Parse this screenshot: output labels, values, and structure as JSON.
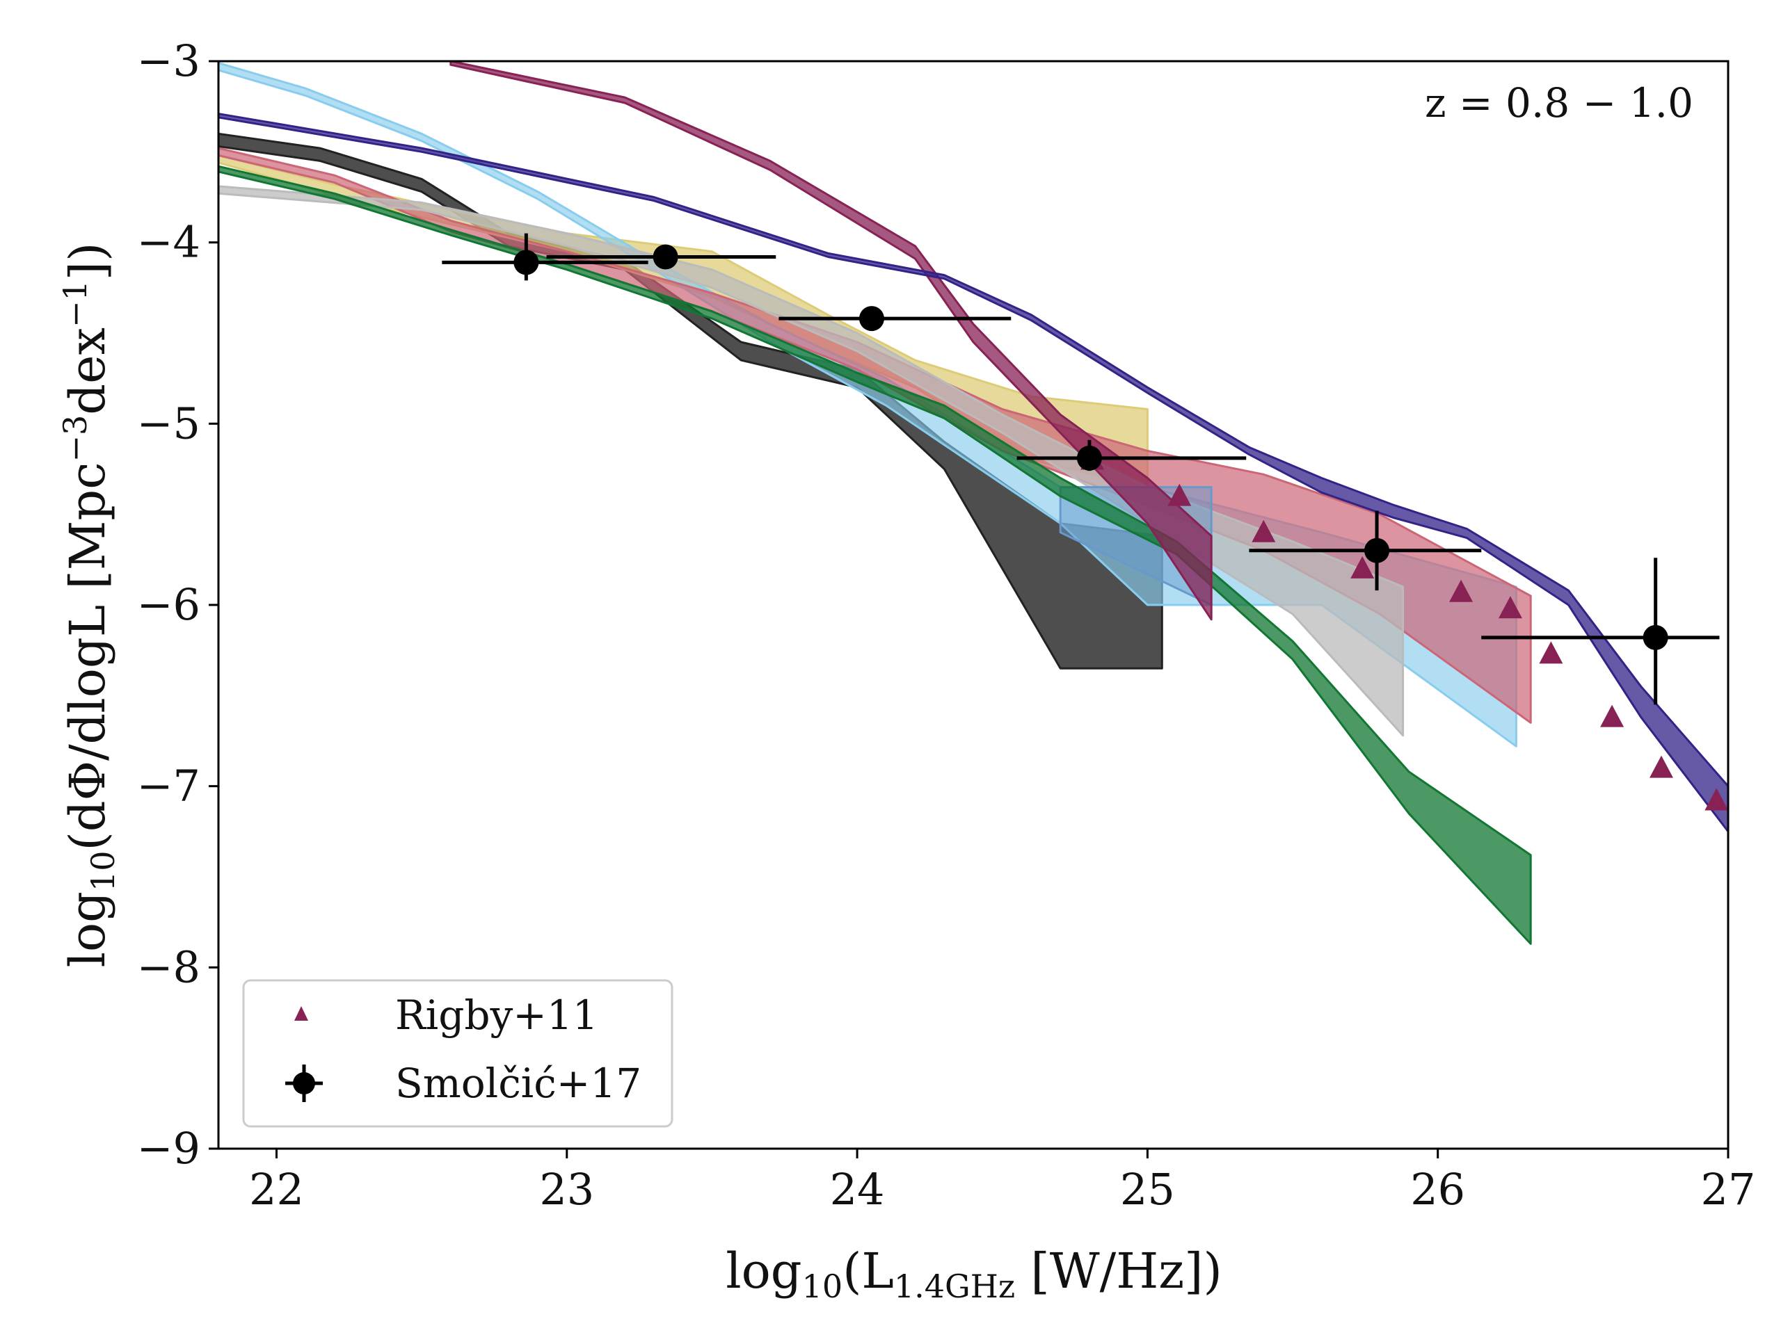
{
  "chart_data": {
    "type": "line",
    "title": "",
    "xlabel_parts": {
      "pre": "log",
      "sub": "10",
      "mid": "(L",
      "sub2": "1.4GHz",
      "post": " [W/Hz])"
    },
    "ylabel_parts": {
      "pre": "log",
      "sub": "10",
      "mid": "(dΦ/dlogL [Mpc",
      "sup": "−3",
      "mid2": "dex",
      "sup2": "−1",
      "post": "])"
    },
    "annotation": "z = 0.8 − 1.0",
    "xlim": [
      21.8,
      27
    ],
    "ylim": [
      -9,
      -3
    ],
    "xticks": [
      22,
      23,
      24,
      25,
      26,
      27
    ],
    "xtick_labels": [
      "22",
      "23",
      "24",
      "25",
      "26",
      "27"
    ],
    "yticks": [
      -9,
      -8,
      -7,
      -6,
      -5,
      -4,
      -3
    ],
    "ytick_labels": [
      "−9",
      "−8",
      "−7",
      "−6",
      "−5",
      "−4",
      "−3"
    ],
    "legend": {
      "position": "lower-left",
      "entries": [
        {
          "label": "Rigby+11",
          "marker": "triangle",
          "color": "#882255"
        },
        {
          "label": "Smolčić+17",
          "marker": "errorbar-circle",
          "color": "#000000"
        }
      ]
    },
    "bands": [
      {
        "name": "black-band",
        "color": "#222222",
        "opacity": 0.8,
        "x": [
          21.8,
          22.15,
          22.5,
          22.8,
          23.2,
          23.6,
          24.0,
          24.3,
          24.7,
          25.05
        ],
        "upper": [
          -3.4,
          -3.48,
          -3.65,
          -3.95,
          -4.1,
          -4.55,
          -4.7,
          -5.1,
          -5.55,
          -5.62
        ],
        "lower": [
          -3.47,
          -3.55,
          -3.72,
          -4.02,
          -4.15,
          -4.65,
          -4.8,
          -5.25,
          -6.35,
          -6.35
        ]
      },
      {
        "name": "gold-band",
        "color": "#ddcc77",
        "opacity": 0.75,
        "x": [
          21.8,
          22.2,
          22.6,
          23.0,
          23.5,
          23.9,
          24.2,
          24.6,
          25.0
        ],
        "upper": [
          -3.52,
          -3.68,
          -3.82,
          -3.95,
          -4.05,
          -4.4,
          -4.65,
          -4.85,
          -4.92
        ],
        "lower": [
          -3.56,
          -3.74,
          -3.9,
          -4.05,
          -4.3,
          -4.6,
          -4.8,
          -5.2,
          -5.35
        ]
      },
      {
        "name": "skyblue-band",
        "color": "#88ccee",
        "opacity": 0.65,
        "x": [
          21.8,
          22.1,
          22.5,
          22.9,
          23.3,
          23.7,
          24.1,
          24.7,
          25.0,
          25.6,
          26.27
        ],
        "upper": [
          -3.01,
          -3.15,
          -3.4,
          -3.72,
          -4.1,
          -4.45,
          -4.75,
          -5.35,
          -5.35,
          -5.6,
          -5.9
        ],
        "lower": [
          -3.05,
          -3.19,
          -3.44,
          -3.76,
          -4.15,
          -4.55,
          -4.9,
          -5.55,
          -6.0,
          -6.0,
          -6.78
        ]
      },
      {
        "name": "rose-band",
        "color": "#cc6677",
        "opacity": 0.7,
        "x": [
          21.8,
          22.2,
          22.6,
          23.0,
          23.5,
          24.0,
          24.5,
          25.0,
          25.4,
          25.8,
          26.32
        ],
        "upper": [
          -3.48,
          -3.63,
          -3.88,
          -4.05,
          -4.28,
          -4.55,
          -4.92,
          -5.15,
          -5.28,
          -5.5,
          -5.95
        ],
        "lower": [
          -3.52,
          -3.67,
          -3.94,
          -4.12,
          -4.38,
          -4.7,
          -5.15,
          -5.45,
          -5.7,
          -6.05,
          -6.65
        ]
      },
      {
        "name": "grey-band",
        "color": "#bbbbbb",
        "opacity": 0.75,
        "x": [
          21.8,
          22.5,
          23.0,
          23.5,
          24.0,
          24.5,
          25.0,
          25.5,
          25.88
        ],
        "upper": [
          -3.69,
          -3.78,
          -3.95,
          -4.15,
          -4.5,
          -4.95,
          -5.35,
          -5.65,
          -5.9
        ],
        "lower": [
          -3.73,
          -3.82,
          -4.02,
          -4.25,
          -4.6,
          -5.05,
          -5.55,
          -6.05,
          -6.72
        ]
      },
      {
        "name": "steelblue-band",
        "color": "#6699cc",
        "opacity": 0.5,
        "x": [
          24.7,
          25.22
        ],
        "upper": [
          -5.35,
          -5.35
        ],
        "lower": [
          -5.6,
          -6.0
        ]
      },
      {
        "name": "green-band",
        "color": "#117733",
        "opacity": 0.75,
        "x": [
          21.8,
          22.2,
          22.6,
          23.0,
          23.5,
          24.0,
          24.3,
          24.7,
          25.1,
          25.5,
          25.9,
          26.32
        ],
        "upper": [
          -3.58,
          -3.73,
          -3.93,
          -4.12,
          -4.38,
          -4.72,
          -4.9,
          -5.3,
          -5.65,
          -6.2,
          -6.92,
          -7.38
        ],
        "lower": [
          -3.61,
          -3.76,
          -3.96,
          -4.15,
          -4.42,
          -4.77,
          -4.97,
          -5.4,
          -5.72,
          -6.3,
          -7.15,
          -7.87
        ]
      },
      {
        "name": "purple-band",
        "color": "#882255",
        "opacity": 0.75,
        "x": [
          22.6,
          23.2,
          23.7,
          24.2,
          24.4,
          24.7,
          25.0,
          25.22
        ],
        "upper": [
          -3.0,
          -3.2,
          -3.55,
          -4.02,
          -4.45,
          -4.95,
          -5.3,
          -5.62
        ],
        "lower": [
          -3.02,
          -3.23,
          -3.6,
          -4.09,
          -4.55,
          -5.05,
          -5.55,
          -6.08
        ]
      },
      {
        "name": "indigo-band",
        "color": "#332288",
        "opacity": 0.75,
        "x": [
          21.8,
          22.5,
          23.3,
          23.9,
          24.3,
          24.6,
          25.0,
          25.35,
          25.6,
          25.85,
          26.1,
          26.45,
          26.7,
          27.0
        ],
        "upper": [
          -3.29,
          -3.48,
          -3.75,
          -4.06,
          -4.18,
          -4.4,
          -4.8,
          -5.13,
          -5.3,
          -5.45,
          -5.58,
          -5.92,
          -6.45,
          -7.0
        ],
        "lower": [
          -3.31,
          -3.5,
          -3.77,
          -4.08,
          -4.2,
          -4.43,
          -4.83,
          -5.17,
          -5.38,
          -5.52,
          -5.63,
          -6.0,
          -6.62,
          -7.25
        ]
      }
    ],
    "series": [
      {
        "name": "Rigby+11",
        "marker": "triangle",
        "color": "#882255",
        "x": [
          24.81,
          25.11,
          25.4,
          25.74,
          26.08,
          26.25,
          26.39,
          26.6,
          26.77,
          26.96
        ],
        "y": [
          -5.2,
          -5.4,
          -5.6,
          -5.8,
          -5.93,
          -6.02,
          -6.27,
          -6.62,
          -6.9,
          -7.08
        ]
      },
      {
        "name": "Smolčić+17",
        "marker": "errorbar-circle",
        "color": "#000000",
        "x": [
          22.86,
          23.34,
          24.05,
          24.8,
          25.79,
          26.75
        ],
        "y": [
          -4.11,
          -4.08,
          -4.42,
          -5.19,
          -5.7,
          -6.18
        ],
        "xerr": [
          [
            0.29,
            0.42
          ],
          [
            0.41,
            0.38
          ],
          [
            0.32,
            0.48
          ],
          [
            0.25,
            0.54
          ],
          [
            0.44,
            0.36
          ],
          [
            0.6,
            0.22
          ]
        ],
        "yerr": [
          [
            0.1,
            0.16
          ],
          [
            0.0,
            0.0
          ],
          [
            0.0,
            0.0
          ],
          [
            0.07,
            0.1
          ],
          [
            0.22,
            0.22
          ],
          [
            0.37,
            0.44
          ]
        ]
      }
    ]
  }
}
